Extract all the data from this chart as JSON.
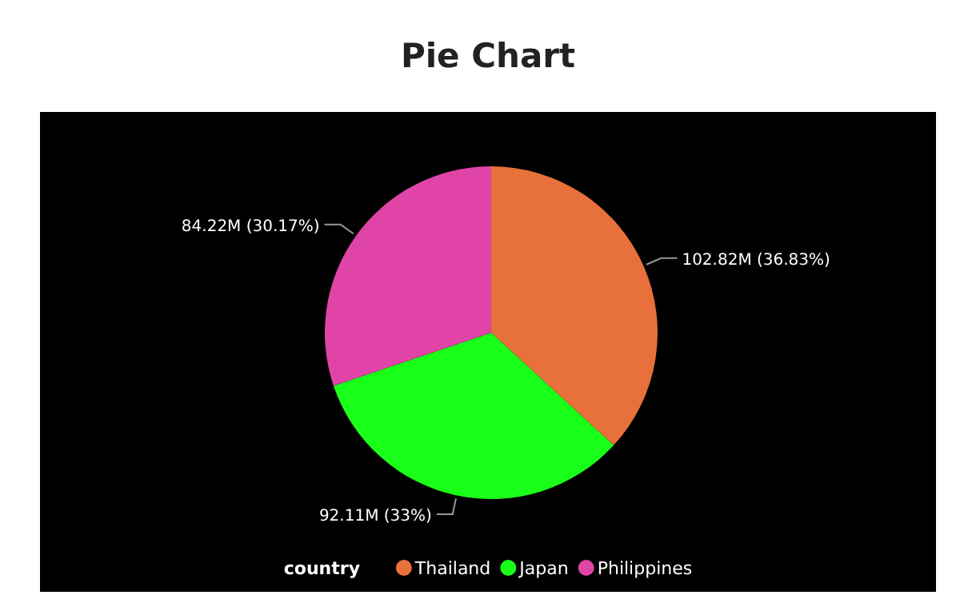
{
  "chart_data": {
    "type": "pie",
    "title": "Pie Chart",
    "legend_title": "country",
    "legend": "bottom",
    "categories": [
      "Thailand",
      "Japan",
      "Philippines"
    ],
    "values": [
      102820000,
      92110000,
      84220000
    ],
    "value_labels": [
      "102.82M (36.83%)",
      "92.11M (33%)",
      "84.22M (30.17%)"
    ],
    "colors": [
      "#e8703a",
      "#1aff1a",
      "#e044a7"
    ]
  }
}
